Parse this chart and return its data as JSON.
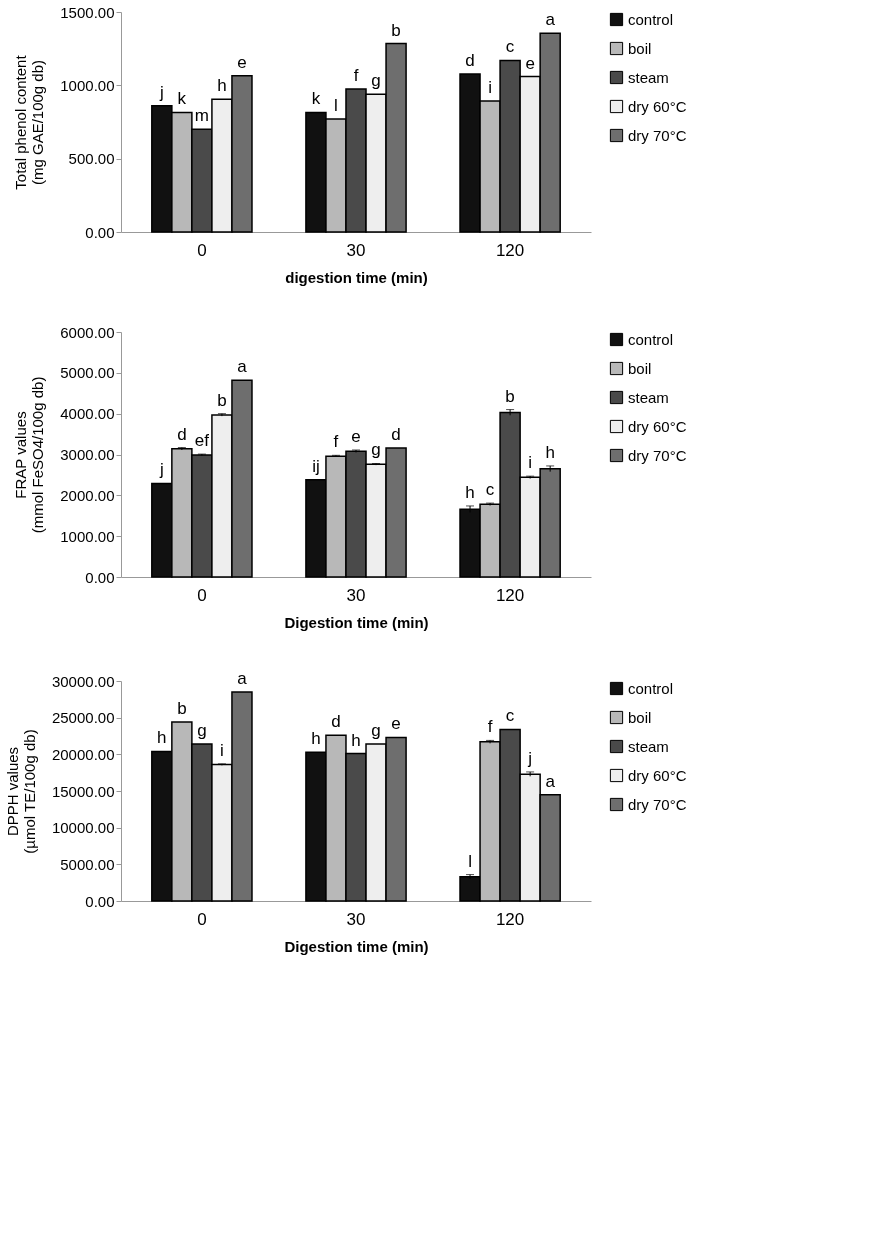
{
  "chart_data": [
    {
      "type": "bar",
      "categories": [
        "0",
        "30",
        "120"
      ],
      "xlabel": "digestion time (min)",
      "ylabel": "Total phenol content\n(mg GAE/100g db)",
      "ylim": [
        0,
        1500
      ],
      "yticks": [
        {
          "value": 0,
          "label": "0.00"
        },
        {
          "value": 500,
          "label": "500.00"
        },
        {
          "value": 1000,
          "label": "1000.00"
        },
        {
          "value": 1500,
          "label": "1500.00"
        }
      ],
      "grid": false,
      "legend": "right",
      "series": [
        {
          "name": "control",
          "color": "#111111",
          "values": [
            860,
            815,
            1078
          ],
          "value_labels": [
            "j",
            "k",
            "d"
          ]
        },
        {
          "name": "boil",
          "color": "#b8b8b8",
          "values": [
            815,
            770,
            893
          ],
          "value_labels": [
            "k",
            "l",
            "i"
          ]
        },
        {
          "name": "steam",
          "color": "#4a4a4a",
          "values": [
            700,
            975,
            1170
          ],
          "value_labels": [
            "m",
            "f",
            "c"
          ]
        },
        {
          "name": "dry 60°C",
          "color": "#eeeeee",
          "values": [
            905,
            940,
            1060
          ],
          "value_labels": [
            "h",
            "g",
            "e"
          ]
        },
        {
          "name": "dry 70°C",
          "color": "#6e6e6e",
          "values": [
            1065,
            1285,
            1355
          ],
          "value_labels": [
            "e",
            "b",
            "a"
          ]
        }
      ]
    },
    {
      "type": "bar",
      "categories": [
        "0",
        "30",
        "120"
      ],
      "xlabel": "Digestion time (min)",
      "ylabel": "FRAP values\n(mmol FeSO4/100g db)",
      "ylim": [
        0,
        6000
      ],
      "yticks": [
        {
          "value": 0,
          "label": "0.00"
        },
        {
          "value": 1000,
          "label": "1000.00"
        },
        {
          "value": 2000,
          "label": "2000.00"
        },
        {
          "value": 3000,
          "label": "3000.00"
        },
        {
          "value": 4000,
          "label": "4000.00"
        },
        {
          "value": 5000,
          "label": "5000.00"
        },
        {
          "value": 6000,
          "label": "6000.00"
        }
      ],
      "grid": false,
      "legend": "right",
      "series": [
        {
          "name": "control",
          "color": "#111111",
          "values": [
            2290,
            2380,
            1660
          ],
          "errors": [
            null,
            null,
            80
          ],
          "value_labels": [
            "j",
            "ij",
            "h"
          ]
        },
        {
          "name": "boil",
          "color": "#b8b8b8",
          "values": [
            3140,
            2960,
            1780
          ],
          "errors": [
            30,
            20,
            30
          ],
          "value_labels": [
            "d",
            "f",
            "c"
          ]
        },
        {
          "name": "steam",
          "color": "#4a4a4a",
          "values": [
            2990,
            3080,
            4030
          ],
          "errors": [
            20,
            30,
            70
          ],
          "value_labels": [
            "ef",
            "e",
            "b"
          ]
        },
        {
          "name": "dry 60°C",
          "color": "#eeeeee",
          "values": [
            3970,
            2760,
            2440
          ],
          "errors": [
            30,
            20,
            30
          ],
          "value_labels": [
            "b",
            "g",
            "i"
          ]
        },
        {
          "name": "dry 70°C",
          "color": "#6e6e6e",
          "values": [
            4820,
            3160,
            2650
          ],
          "errors": [
            null,
            null,
            70
          ],
          "value_labels": [
            "a",
            "d",
            "h"
          ]
        }
      ]
    },
    {
      "type": "bar",
      "categories": [
        "0",
        "30",
        "120"
      ],
      "xlabel": "Digestion time (min)",
      "ylabel": "DPPH values\n(µmol TE/100g db)",
      "ylim": [
        0,
        30000
      ],
      "yticks": [
        {
          "value": 0,
          "label": "0.00"
        },
        {
          "value": 5000,
          "label": "5000.00"
        },
        {
          "value": 10000,
          "label": "10000.00"
        },
        {
          "value": 15000,
          "label": "15000.00"
        },
        {
          "value": 20000,
          "label": "20000.00"
        },
        {
          "value": 25000,
          "label": "25000.00"
        },
        {
          "value": 30000,
          "label": "30000.00"
        }
      ],
      "grid": false,
      "legend": "right",
      "series": [
        {
          "name": "control",
          "color": "#111111",
          "values": [
            20400,
            20300,
            3300
          ],
          "errors": [
            null,
            null,
            300
          ],
          "value_labels": [
            "h",
            "h",
            "l"
          ]
        },
        {
          "name": "boil",
          "color": "#b8b8b8",
          "values": [
            24400,
            22600,
            21700
          ],
          "errors": [
            null,
            null,
            200
          ],
          "value_labels": [
            "b",
            "d",
            "f"
          ]
        },
        {
          "name": "steam",
          "color": "#4a4a4a",
          "values": [
            21400,
            20100,
            23400
          ],
          "value_labels": [
            "g",
            "h",
            "c"
          ]
        },
        {
          "name": "dry 60°C",
          "color": "#eeeeee",
          "values": [
            18600,
            21400,
            17300
          ],
          "errors": [
            100,
            null,
            300
          ],
          "value_labels": [
            "i",
            "g",
            "j"
          ]
        },
        {
          "name": "dry 70°C",
          "color": "#6e6e6e",
          "values": [
            28500,
            22300,
            14500
          ],
          "value_labels": [
            "a",
            "e",
            "a"
          ]
        }
      ]
    }
  ]
}
